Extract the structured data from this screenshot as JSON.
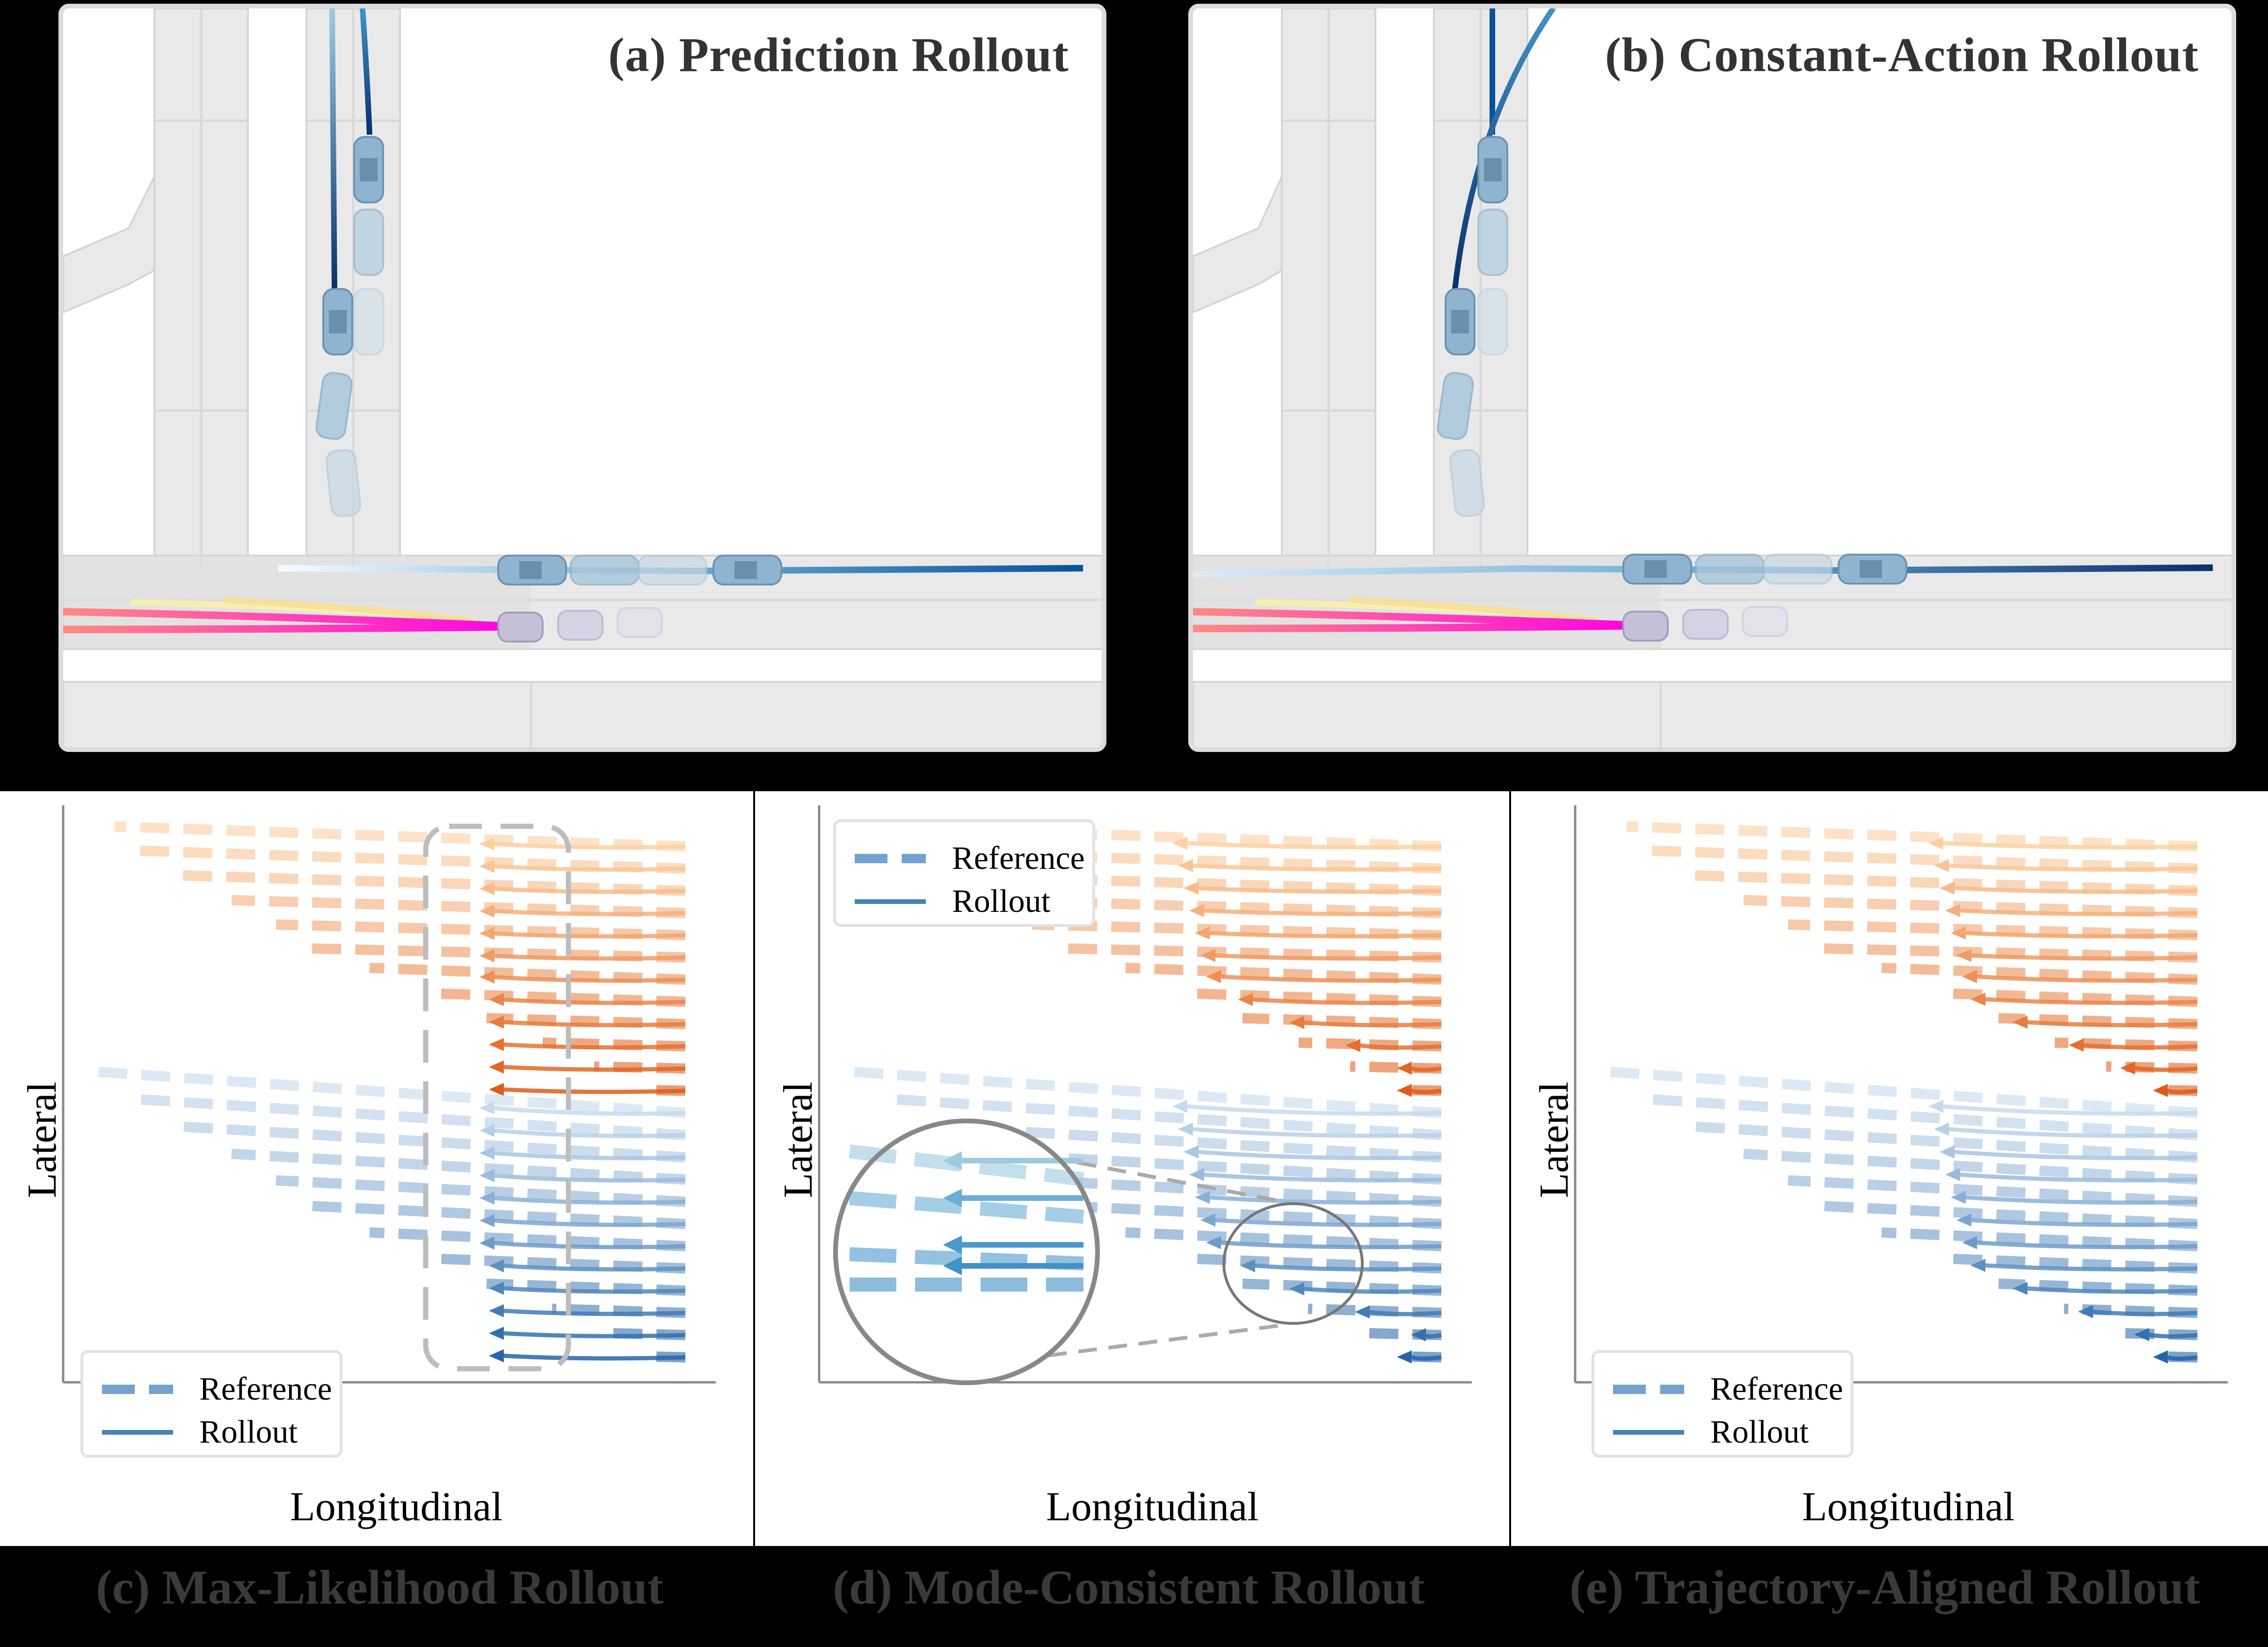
{
  "panels": {
    "a": {
      "title": "(a) Prediction Rollout"
    },
    "b": {
      "title": "(b) Constant-Action Rollout"
    },
    "c": {
      "caption": "(c) Max-Likelihood Rollout",
      "xlabel": "Longitudinal",
      "ylabel": "Lateral"
    },
    "d": {
      "caption": "(d) Mode-Consistent Rollout",
      "xlabel": "Longitudinal",
      "ylabel": "Lateral"
    },
    "e": {
      "caption": "(e) Trajectory-Aligned Rollout",
      "xlabel": "Longitudinal",
      "ylabel": "Lateral"
    }
  },
  "legend": {
    "reference": "Reference",
    "rollout": "Rollout"
  },
  "colors": {
    "road": "#e8e8e8",
    "road_edge": "#d2d2d2",
    "frame": "#dcdcdc",
    "blue_dark": "#08519c",
    "blue_light": "#c6dbef",
    "orange_dark": "#d94801",
    "orange_light": "#fdd0a2",
    "ego_magenta": "#ff00e6",
    "ego_pink": "#ff7fa0",
    "legend_ref": "#73a2cf",
    "legend_roll": "#4682b9",
    "caption_text": "#3a3a3a"
  },
  "chart_data": [
    {
      "type": "line",
      "title": "(c) Max-Likelihood Rollout",
      "xlabel": "Longitudinal",
      "ylabel": "Lateral",
      "legend": [
        "Reference",
        "Rollout"
      ],
      "legend_position": "lower left",
      "annotation": "dashed rounded box highlighting rollout endpoints",
      "series_groups": [
        {
          "name": "orange",
          "count": 12,
          "rollout_end_x_range": [
            0.62,
            0.66
          ]
        },
        {
          "name": "blue",
          "count": 12,
          "rollout_end_x_range": [
            0.62,
            0.66
          ]
        }
      ]
    },
    {
      "type": "line",
      "title": "(d) Mode-Consistent Rollout",
      "xlabel": "Longitudinal",
      "ylabel": "Lateral",
      "legend": [
        "Reference",
        "Rollout"
      ],
      "legend_position": "upper left",
      "annotation": "magnified inset circle of blue trajectories",
      "series_groups": [
        {
          "name": "orange",
          "count": 12
        },
        {
          "name": "blue",
          "count": 12
        }
      ]
    },
    {
      "type": "line",
      "title": "(e) Trajectory-Aligned Rollout",
      "xlabel": "Longitudinal",
      "ylabel": "Lateral",
      "legend": [
        "Reference",
        "Rollout"
      ],
      "legend_position": "lower left",
      "series_groups": [
        {
          "name": "orange",
          "count": 12
        },
        {
          "name": "blue",
          "count": 12
        }
      ]
    }
  ]
}
